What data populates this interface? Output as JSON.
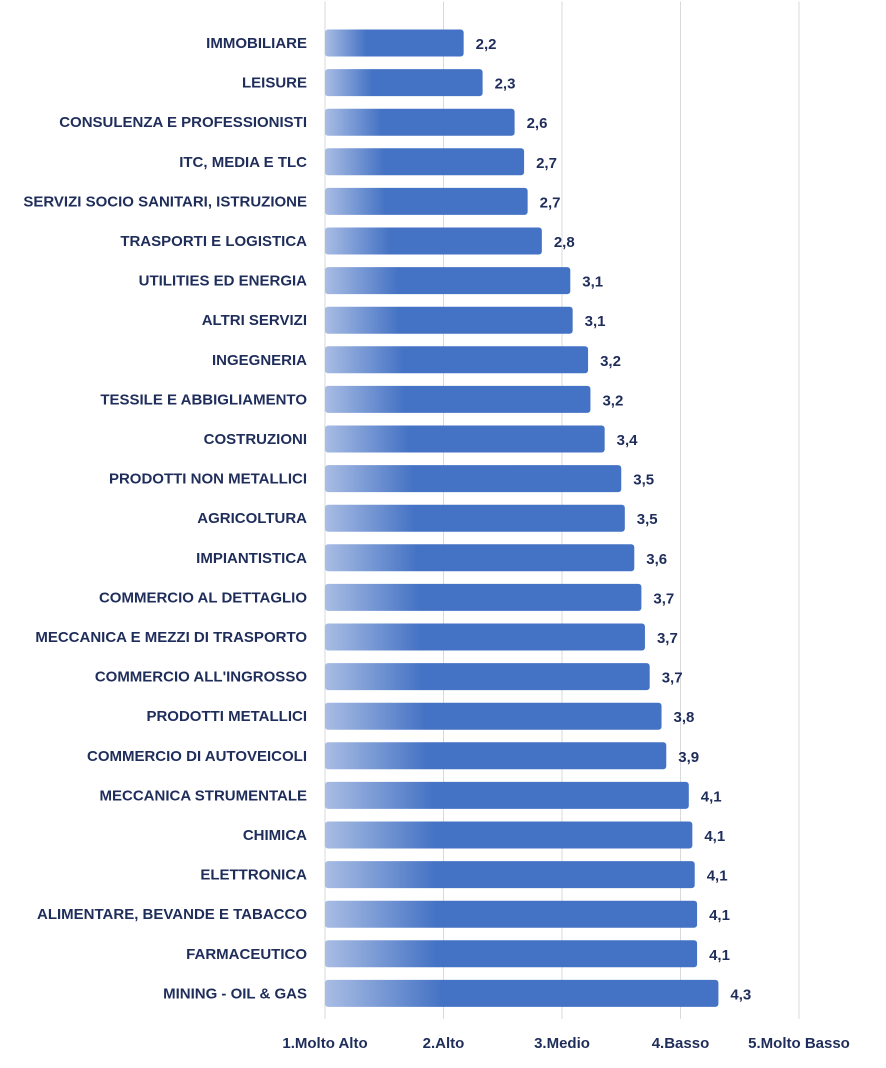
{
  "chart_data": {
    "type": "bar",
    "orientation": "horizontal",
    "title": "",
    "xlabel": "",
    "ylabel": "",
    "xlim": [
      1,
      5
    ],
    "x_ticks": [
      1,
      2,
      3,
      4,
      5
    ],
    "x_tick_labels": [
      "1.Molto Alto",
      "2.Alto",
      "3.Medio",
      "4.Basso",
      "5.Molto Basso"
    ],
    "grid": true,
    "legend": "none",
    "bar_color": "#4472c4",
    "bar_color_light": "#a9bde4",
    "categories": [
      "IMMOBILIARE",
      "LEISURE",
      "CONSULENZA E PROFESSIONISTI",
      "ITC, MEDIA E TLC",
      "SERVIZI SOCIO SANITARI, ISTRUZIONE",
      "TRASPORTI E LOGISTICA",
      "UTILITIES ED ENERGIA",
      "ALTRI SERVIZI",
      "INGEGNERIA",
      "TESSILE E ABBIGLIAMENTO",
      "COSTRUZIONI",
      "PRODOTTI NON METALLICI",
      "AGRICOLTURA",
      "IMPIANTISTICA",
      "COMMERCIO AL DETTAGLIO",
      "MECCANICA E MEZZI DI TRASPORTO",
      "COMMERCIO ALL'INGROSSO",
      "PRODOTTI METALLICI",
      "COMMERCIO DI AUTOVEICOLI",
      "MECCANICA STRUMENTALE",
      "CHIMICA",
      "ELETTRONICA",
      "ALIMENTARE, BEVANDE E TABACCO",
      "FARMACEUTICO",
      "MINING - OIL & GAS"
    ],
    "values": [
      2.17,
      2.33,
      2.6,
      2.68,
      2.71,
      2.83,
      3.07,
      3.09,
      3.22,
      3.24,
      3.36,
      3.5,
      3.53,
      3.61,
      3.67,
      3.7,
      3.74,
      3.84,
      3.88,
      4.07,
      4.1,
      4.12,
      4.14,
      4.14,
      4.32
    ],
    "value_labels": [
      "2,2",
      "2,3",
      "2,6",
      "2,7",
      "2,7",
      "2,8",
      "3,1",
      "3,1",
      "3,2",
      "3,2",
      "3,4",
      "3,5",
      "3,5",
      "3,6",
      "3,7",
      "3,7",
      "3,7",
      "3,8",
      "3,9",
      "4,1",
      "4,1",
      "4,1",
      "4,1",
      "4,1",
      "4,3"
    ]
  }
}
